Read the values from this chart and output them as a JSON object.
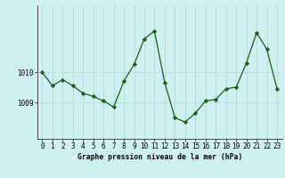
{
  "x": [
    0,
    1,
    2,
    3,
    4,
    5,
    6,
    7,
    8,
    9,
    10,
    11,
    12,
    13,
    14,
    15,
    16,
    17,
    18,
    19,
    20,
    21,
    22,
    23
  ],
  "y": [
    1010.0,
    1009.55,
    1009.75,
    1009.55,
    1009.3,
    1009.2,
    1009.05,
    1008.85,
    1009.7,
    1010.25,
    1011.1,
    1011.35,
    1009.65,
    1008.5,
    1008.35,
    1008.65,
    1009.05,
    1009.1,
    1009.45,
    1009.5,
    1010.3,
    1011.3,
    1010.75,
    1009.45
  ],
  "line_color": "#1a5c1a",
  "marker": "D",
  "marker_size": 2.2,
  "bg_color": "#cff0f0",
  "plot_bg_color": "#cff0f0",
  "grid_color": "#a8d8d8",
  "xlabel": "Graphe pression niveau de la mer (hPa)",
  "ytick_labels": [
    "1009",
    "1010"
  ],
  "ytick_vals": [
    1009,
    1010
  ],
  "ylim_min": 1007.8,
  "ylim_max": 1012.2,
  "xlim_min": -0.5,
  "xlim_max": 23.5
}
